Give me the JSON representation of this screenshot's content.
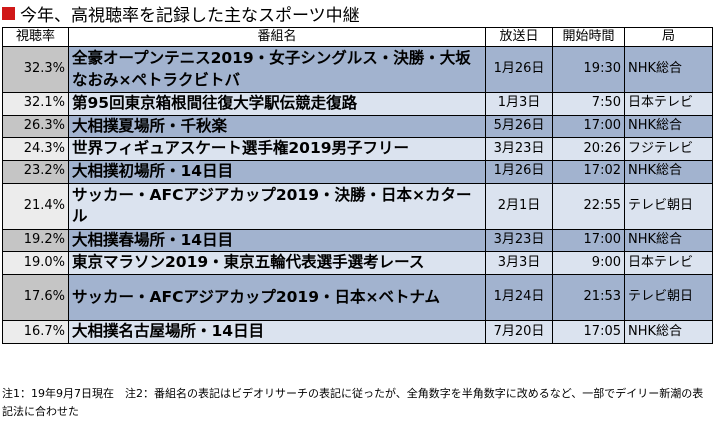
{
  "title": "今年、高視聴率を記録した主なスポーツ中継",
  "headers": [
    "視聴率",
    "番組名",
    "放送日",
    "開始時間",
    "局"
  ],
  "rows": [
    {
      "rating": "32.3%",
      "name": "全豪オープンテニス2019・女子シングルス・決勝・大坂なおみ×ペトラクビトバ",
      "date": "1月26日",
      "time": "19:30",
      "station": "NHK総合"
    },
    {
      "rating": "32.1%",
      "name": "第95回東京箱根間往復大学駅伝競走復路",
      "date": "1月3日",
      "time": "7:50",
      "station": "日本テレビ"
    },
    {
      "rating": "26.3%",
      "name": "大相撲夏場所・千秋楽",
      "date": "5月26日",
      "time": "17:00",
      "station": "NHK総合"
    },
    {
      "rating": "24.3%",
      "name": "世界フィギュアスケート選手権2019男子フリー",
      "date": "3月23日",
      "time": "20:26",
      "station": "フジテレビ"
    },
    {
      "rating": "23.2%",
      "name": "大相撲初場所・14日目",
      "date": "1月26日",
      "time": "17:02",
      "station": "NHK総合"
    },
    {
      "rating": "21.4%",
      "name": "サッカー・AFCアジアカップ2019・決勝・日本×カタール",
      "date": "2月1日",
      "time": "22:55",
      "station": "テレビ朝日"
    },
    {
      "rating": "19.2%",
      "name": "大相撲春場所・14日目",
      "date": "3月23日",
      "time": "17:00",
      "station": "NHK総合"
    },
    {
      "rating": "19.0%",
      "name": "東京マラソン2019・東京五輪代表選手選考レース",
      "date": "3月3日",
      "time": "9:00",
      "station": "日本テレビ"
    },
    {
      "rating": "17.6%",
      "name": "サッカー・AFCアジアカップ2019・日本×ベトナム",
      "date": "1月24日",
      "time": "21:53",
      "station": "テレビ朝日"
    },
    {
      "rating": "16.7%",
      "name": "大相撲名古屋場所・14日目",
      "date": "7月20日",
      "time": "17:05",
      "station": "NHK総合"
    }
  ],
  "footnote": "注1：19年9月7日現在　注2：番組名の表記はビデオリサーチの表記に従ったが、全角数字を半角数字に改めるなど、一部でデイリー新潮の表記法に合わせた",
  "colors": {
    "row_dark": "#a2b3cf",
    "row_light": "#dbe3ef",
    "rating_dark": "#c5c5c5",
    "rating_light": "#ececec",
    "title_mark": "#d01818"
  }
}
